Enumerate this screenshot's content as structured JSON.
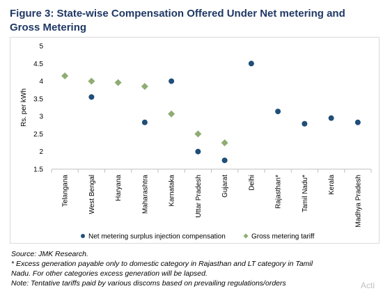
{
  "figure_title_line1": "Figure 3: State-wise Compensation Offered Under Net metering and",
  "figure_title_line2": "Gross Metering",
  "chart_data": {
    "type": "scatter",
    "ylabel": "Rs. per kWh",
    "ylim": [
      1.5,
      5
    ],
    "yticks": [
      "1.5",
      "2",
      "2.5",
      "3",
      "3.5",
      "4",
      "4.5",
      "5"
    ],
    "categories": [
      "Telangana",
      "West Bengal",
      "Haryana",
      "Maharashtra",
      "Karnataka",
      "Uttar Pradesh",
      "Gujarat",
      "Delhi",
      "Rajasthan*",
      "Tamil Nadu*",
      "Kerala",
      "Madhya Pradesh"
    ],
    "series": [
      {
        "name": "Net metering surplus injection compensation",
        "marker": "circle",
        "color": "#1f4e79",
        "values": [
          null,
          3.55,
          null,
          2.83,
          4.0,
          2.0,
          1.75,
          4.5,
          3.14,
          2.79,
          2.95,
          2.83
        ]
      },
      {
        "name": "Gross metering tariff",
        "marker": "diamond",
        "color": "#8fac73",
        "values": [
          4.15,
          4.0,
          3.96,
          3.85,
          3.07,
          2.5,
          2.25,
          null,
          null,
          null,
          null,
          null
        ]
      }
    ],
    "legend_position": "bottom",
    "grid": false
  },
  "notes": {
    "source": "Source: JMK Research.",
    "footnote_line1": "* Excess generation payable only to domestic category in Rajasthan and LT category in Tamil",
    "footnote_line2": "Nadu. For other categories excess generation will be lapsed.",
    "note": "Note: Tentative tariffs paid by various discoms based on prevailing regulations/orders"
  },
  "watermark": "Acti"
}
